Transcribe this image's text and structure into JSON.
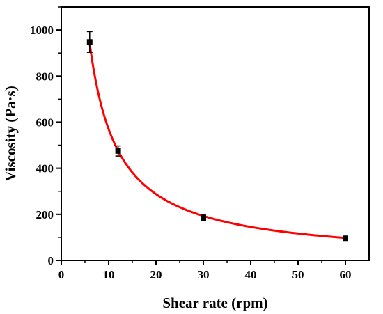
{
  "chart_data": {
    "type": "scatter",
    "title": "",
    "xlabel": "Shear rate (rpm)",
    "ylabel": "Viscosity (Pa·s)",
    "xlim": [
      0,
      65
    ],
    "ylim": [
      0,
      1100
    ],
    "x_ticks": [
      0,
      10,
      20,
      30,
      40,
      50,
      60
    ],
    "y_ticks": [
      0,
      200,
      400,
      600,
      800,
      1000
    ],
    "grid": false,
    "legend": "none",
    "series": [
      {
        "kind": "points",
        "x": [
          6,
          12,
          30,
          60
        ],
        "y": [
          948,
          475,
          185,
          96
        ],
        "error": [
          45,
          22,
          12,
          6
        ],
        "color": "#000000",
        "marker": "square"
      },
      {
        "kind": "fit-curve",
        "model": "power-law",
        "coefficient": 5500,
        "exponent": -0.985,
        "x_range": [
          6,
          60
        ],
        "color": "#ff0000"
      }
    ]
  }
}
